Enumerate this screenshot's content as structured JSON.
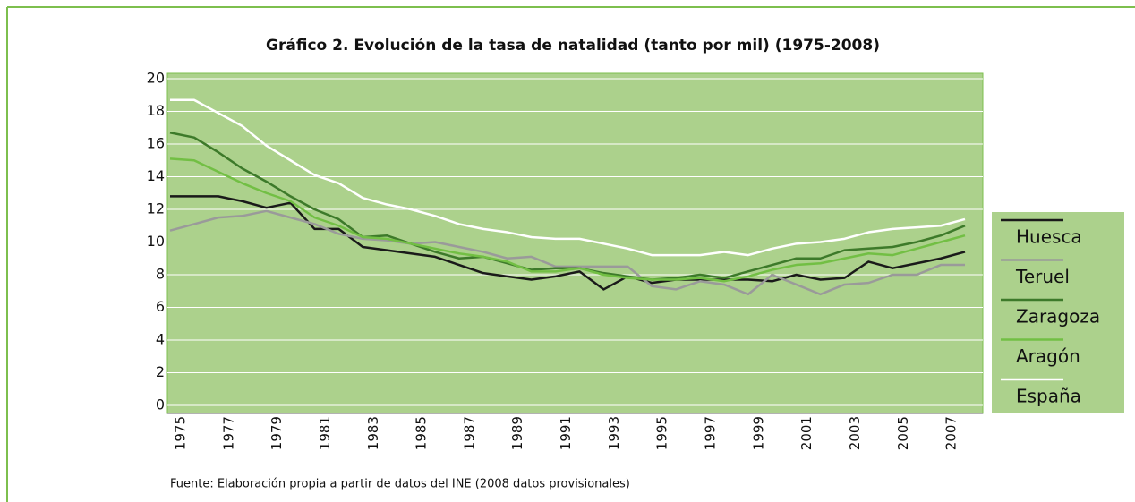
{
  "chart_data": {
    "type": "line",
    "title": "Gráfico 2. Evolución de la tasa de natalidad (tanto por mil) (1975-2008)",
    "source": "Fuente: Elaboración propia a partir de datos del INE (2008 datos provisionales)",
    "categories": [
      "1975",
      null,
      "1977",
      null,
      "1979",
      null,
      "1981",
      null,
      "1983",
      null,
      "1985",
      null,
      "1987",
      null,
      "1989",
      null,
      "1991",
      null,
      "1993",
      null,
      "1995",
      null,
      "1997",
      null,
      "1999",
      null,
      "2001",
      null,
      "2003",
      null,
      "2005",
      null,
      "2007",
      null
    ],
    "series": [
      {
        "name": "Huesca",
        "color": "#1a1a1a",
        "values": [
          12.8,
          12.8,
          12.8,
          12.5,
          12.1,
          12.4,
          10.8,
          10.8,
          9.7,
          9.5,
          9.3,
          9.1,
          8.6,
          8.1,
          7.9,
          7.7,
          7.9,
          8.2,
          7.1,
          7.9,
          7.5,
          7.7,
          7.7,
          7.7,
          7.7,
          7.6,
          8.0,
          7.7,
          7.8,
          8.8,
          8.4,
          8.7,
          9.0,
          9.4
        ]
      },
      {
        "name": "Teruel",
        "color": "#9a9a9a",
        "values": [
          10.7,
          11.1,
          11.5,
          11.6,
          11.9,
          11.5,
          11.1,
          10.5,
          10.2,
          10.1,
          9.9,
          10.0,
          9.7,
          9.4,
          9.0,
          9.1,
          8.5,
          8.5,
          8.5,
          8.5,
          7.3,
          7.1,
          7.6,
          7.4,
          6.8,
          8.0,
          7.4,
          6.8,
          7.4,
          7.5,
          8.0,
          8.0,
          8.6,
          8.6
        ]
      },
      {
        "name": "Zaragoza",
        "color": "#3d7a2a",
        "values": [
          16.7,
          16.4,
          15.5,
          14.5,
          13.7,
          12.8,
          12.0,
          11.4,
          10.3,
          10.4,
          9.9,
          9.4,
          9.0,
          9.1,
          8.7,
          8.3,
          8.4,
          8.4,
          8.1,
          7.9,
          7.7,
          7.8,
          8.0,
          7.8,
          8.2,
          8.6,
          9.0,
          9.0,
          9.5,
          9.6,
          9.7,
          10.0,
          10.4,
          11.0
        ]
      },
      {
        "name": "Aragón",
        "color": "#72bf44",
        "values": [
          15.1,
          15.0,
          14.3,
          13.6,
          13.0,
          12.5,
          11.5,
          11.0,
          10.3,
          10.2,
          9.9,
          9.6,
          9.3,
          9.1,
          8.8,
          8.2,
          8.2,
          8.4,
          8.0,
          7.8,
          7.7,
          7.7,
          7.8,
          7.6,
          7.9,
          8.3,
          8.6,
          8.7,
          9.0,
          9.3,
          9.2,
          9.6,
          10.0,
          10.4
        ]
      },
      {
        "name": "España",
        "color": "#ffffff",
        "values": [
          18.7,
          18.7,
          17.9,
          17.1,
          15.9,
          15.0,
          14.1,
          13.6,
          12.7,
          12.3,
          12.0,
          11.6,
          11.1,
          10.8,
          10.6,
          10.3,
          10.2,
          10.2,
          9.9,
          9.6,
          9.2,
          9.2,
          9.2,
          9.4,
          9.2,
          9.6,
          9.9,
          10.0,
          10.2,
          10.6,
          10.8,
          10.9,
          11.0,
          11.4
        ]
      }
    ],
    "ylim": [
      0,
      20
    ],
    "yticks": [
      0,
      2,
      4,
      6,
      8,
      10,
      12,
      14,
      16,
      18,
      20
    ],
    "grid": true,
    "legend": "right",
    "background": "#acd18c"
  }
}
